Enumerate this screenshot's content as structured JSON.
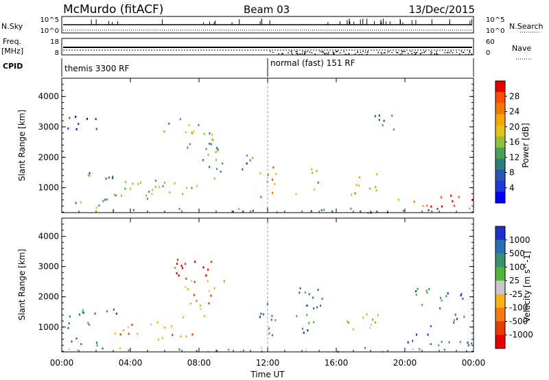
{
  "header": {
    "station": "McMurdo (fitACF)",
    "beam": "Beam 03",
    "date": "13/Dec/2015"
  },
  "aux_panels": {
    "nsky_label": "N.Sky",
    "nsky_ticks": [
      "10^5",
      "10^0"
    ],
    "nsearch_label": "N.Search",
    "nsearch_ticks": [
      "10^5",
      "10^0"
    ],
    "freq_label": "Freq.",
    "freq_unit": "[MHz]",
    "freq_ticks": [
      "18",
      "8"
    ],
    "nave_label": "Nave",
    "nave_ticks": [
      "60",
      "0"
    ],
    "cpid_label": "CPID",
    "cpid_segments": [
      "themis 3300 RF",
      "normal (fast) 151 RF"
    ]
  },
  "chart_data": [
    {
      "type": "heatmap",
      "name": "power",
      "ylabel": "Slant Range [km]",
      "xlabel": "Time UT",
      "x_ticks": [
        "00:00",
        "04:00",
        "08:00",
        "12:00",
        "16:00",
        "20:00",
        "00:00"
      ],
      "x_range_hours": [
        0,
        24
      ],
      "y_ticks": [
        1000,
        2000,
        3000,
        4000
      ],
      "ylim": [
        180,
        4600
      ],
      "colorbar_label": "Power [dB]",
      "colorbar_ticks": [
        "28",
        "24",
        "20",
        "16",
        "12",
        "8",
        "4"
      ],
      "colorbar_colors": [
        "#e80000",
        "#ff4d00",
        "#f07800",
        "#f5a800",
        "#dfc21a",
        "#8fc23a",
        "#4a9e5a",
        "#2d7f78",
        "#2a55b0",
        "#1d3ad8",
        "#0000ff"
      ],
      "regions": [
        {
          "t": [
            0.3,
            2.8
          ],
          "r": [
            300,
            700
          ],
          "level": 0.45
        },
        {
          "t": [
            0.3,
            3.5
          ],
          "r": [
            1300,
            1600
          ],
          "level": 0.3
        },
        {
          "t": [
            3.0,
            8.0
          ],
          "r": [
            600,
            1300
          ],
          "level": 0.55
        },
        {
          "t": [
            5.8,
            8.8
          ],
          "r": [
            2600,
            3300
          ],
          "level": 0.5
        },
        {
          "t": [
            7.0,
            9.5
          ],
          "r": [
            1300,
            2600
          ],
          "level": 0.45
        },
        {
          "t": [
            10.2,
            11.3
          ],
          "r": [
            1600,
            2300
          ],
          "level": 0.35
        },
        {
          "t": [
            11.5,
            12.6
          ],
          "r": [
            700,
            1900
          ],
          "level": 0.7
        },
        {
          "t": [
            0.3,
            2.3
          ],
          "r": [
            2900,
            3500
          ],
          "level": 0.2
        },
        {
          "t": [
            13.5,
            15.0
          ],
          "r": [
            800,
            1300
          ],
          "level": 0.45
        },
        {
          "t": [
            14.5,
            15.2
          ],
          "r": [
            1300,
            1900
          ],
          "level": 0.45
        },
        {
          "t": [
            16.5,
            18.5
          ],
          "r": [
            800,
            1500
          ],
          "level": 0.5
        },
        {
          "t": [
            19.5,
            24.0
          ],
          "r": [
            400,
            800
          ],
          "level": 0.85
        },
        {
          "t": [
            18.0,
            19.5
          ],
          "r": [
            2900,
            3500
          ],
          "level": 0.35
        },
        {
          "t": [
            0.0,
            24.0
          ],
          "r": [
            200,
            350
          ],
          "level": 0.35
        }
      ]
    },
    {
      "type": "heatmap",
      "name": "velocity",
      "ylabel": "Slant Range [km]",
      "xlabel": "Time UT",
      "x_ticks": [
        "00:00",
        "04:00",
        "08:00",
        "12:00",
        "16:00",
        "20:00",
        "00:00"
      ],
      "x_range_hours": [
        0,
        24
      ],
      "y_ticks": [
        1000,
        2000,
        3000,
        4000
      ],
      "ylim": [
        180,
        4600
      ],
      "colorbar_label": "Velocity [m s^-1]",
      "colorbar_ticks": [
        "1000",
        "500",
        "100",
        "25",
        "-25",
        "-100",
        "-500",
        "-1000"
      ],
      "colorbar_colors": [
        "#1e32c8",
        "#2a6eb4",
        "#3c9170",
        "#56b43c",
        "#c8c8c8",
        "#f5b414",
        "#f57a14",
        "#e63c00",
        "#e80000"
      ],
      "regions": [
        {
          "t": [
            0.3,
            2.5
          ],
          "r": [
            300,
            700
          ],
          "level": 0.72
        },
        {
          "t": [
            0.3,
            3.5
          ],
          "r": [
            1000,
            1700
          ],
          "level": 0.8
        },
        {
          "t": [
            3.0,
            8.0
          ],
          "r": [
            600,
            1300
          ],
          "level": 0.35
        },
        {
          "t": [
            5.8,
            8.8
          ],
          "r": [
            2600,
            3300
          ],
          "level": 0.12
        },
        {
          "t": [
            7.0,
            9.5
          ],
          "r": [
            1300,
            2600
          ],
          "level": 0.3
        },
        {
          "t": [
            11.5,
            12.6
          ],
          "r": [
            700,
            1900
          ],
          "level": 0.78
        },
        {
          "t": [
            13.5,
            15.2
          ],
          "r": [
            800,
            2400
          ],
          "level": 0.8
        },
        {
          "t": [
            16.5,
            18.5
          ],
          "r": [
            800,
            1500
          ],
          "level": 0.45
        },
        {
          "t": [
            19.5,
            24.0
          ],
          "r": [
            400,
            800
          ],
          "level": 0.82
        },
        {
          "t": [
            20.5,
            23.5
          ],
          "r": [
            1000,
            2400
          ],
          "level": 0.78
        },
        {
          "t": [
            0.0,
            24.0
          ],
          "r": [
            200,
            350
          ],
          "level": 0.6
        }
      ]
    }
  ]
}
